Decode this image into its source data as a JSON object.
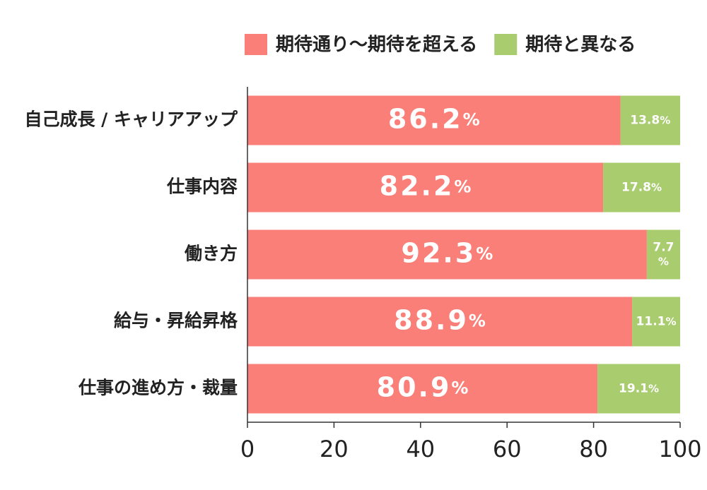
{
  "chart_data": {
    "type": "bar",
    "orientation": "horizontal",
    "stacked": true,
    "categories": [
      "自己成長 / キャリアアップ",
      "仕事内容",
      "働き方",
      "給与・昇給昇格",
      "仕事の進め方・裁量"
    ],
    "series": [
      {
        "name": "期待通り～期待を超える",
        "color": "#fa7f78",
        "values": [
          86.2,
          82.2,
          92.3,
          88.9,
          80.9
        ],
        "value_labels": [
          "86.2%",
          "82.2%",
          "92.3%",
          "88.9%",
          "80.9%"
        ]
      },
      {
        "name": "期待と異なる",
        "color": "#a8cc6e",
        "values": [
          13.8,
          17.8,
          7.7,
          11.1,
          19.1
        ],
        "value_labels": [
          "13.8%",
          "17.8%",
          "7.7%",
          "11.1%",
          "19.1%"
        ]
      }
    ],
    "xlim": [
      0,
      100
    ],
    "xticks": [
      0,
      20,
      40,
      60,
      80,
      100
    ],
    "legend": "top-right"
  }
}
